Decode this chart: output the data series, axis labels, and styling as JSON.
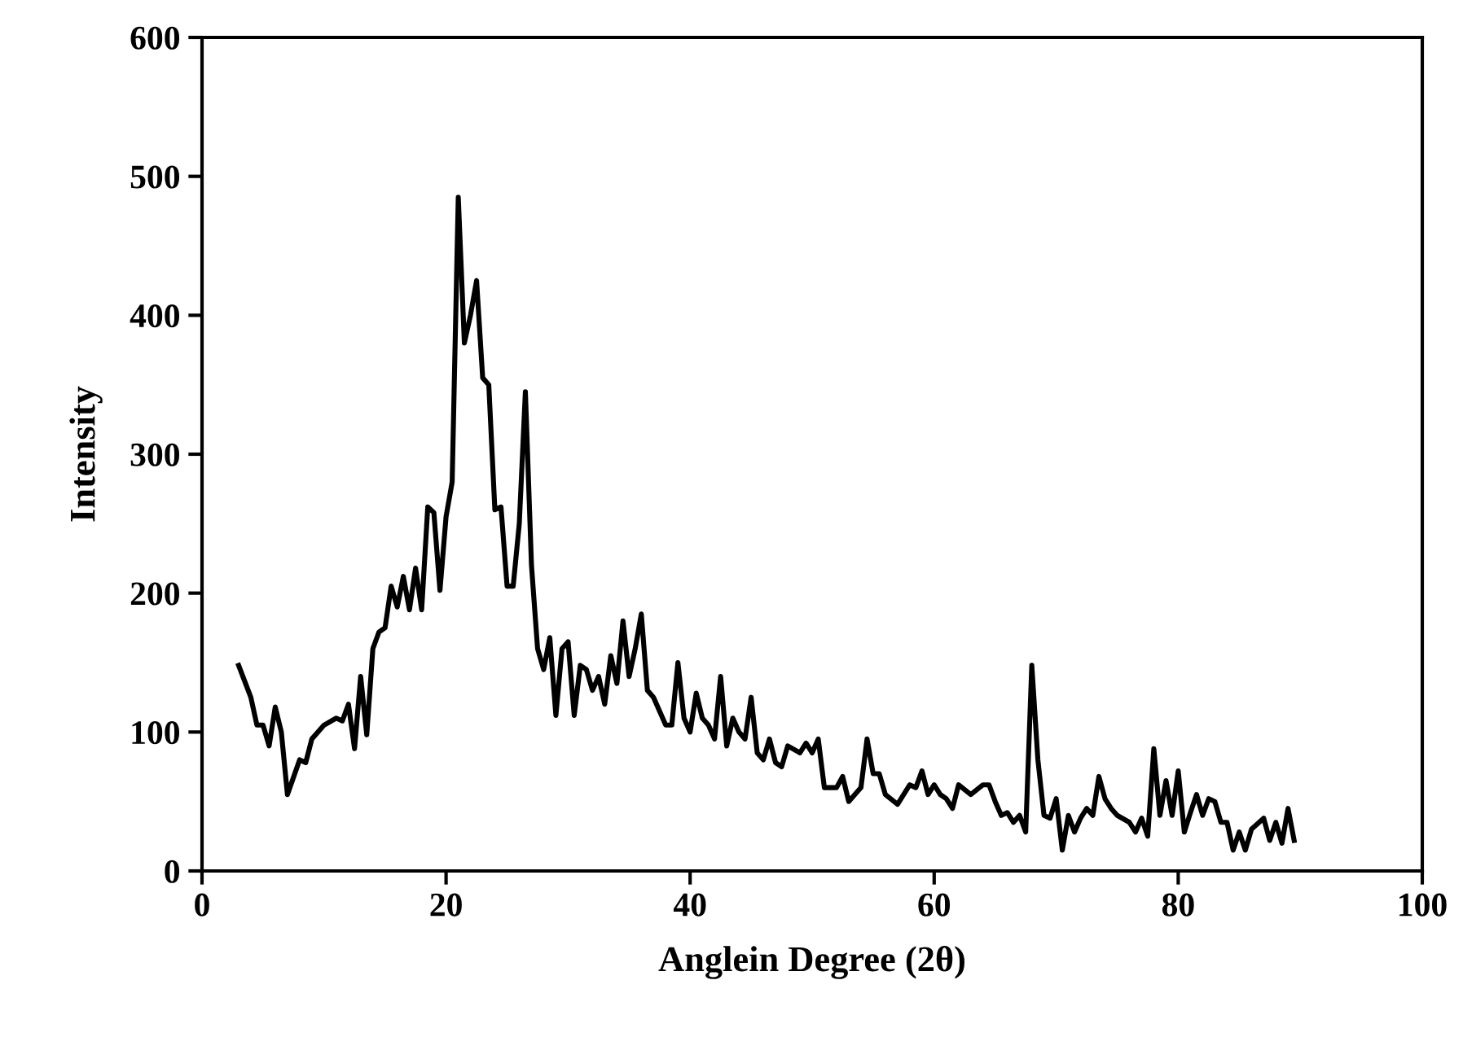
{
  "chart_data": {
    "type": "line",
    "xlabel": "Anglein Degree (2θ)",
    "ylabel": "Intensity",
    "xlim": [
      0,
      100
    ],
    "ylim": [
      0,
      600
    ],
    "xticks": [
      0,
      20,
      40,
      60,
      80,
      100
    ],
    "yticks": [
      0,
      100,
      200,
      300,
      400,
      500,
      600
    ],
    "grid": false,
    "legend": false,
    "marker": "none",
    "line_style": "solid",
    "series": [
      {
        "color": "#000000",
        "x": [
          3,
          4,
          4.5,
          5,
          5.5,
          6,
          6.5,
          7,
          8,
          8.5,
          9,
          10,
          11,
          11.5,
          12,
          12.5,
          13,
          13.5,
          14,
          14.5,
          15,
          15.5,
          16,
          16.5,
          17,
          17.5,
          18,
          18.5,
          19,
          19.5,
          20,
          20.5,
          21,
          21.5,
          22,
          22.5,
          23,
          23.5,
          24,
          24.5,
          25,
          25.5,
          26,
          26.5,
          27,
          27.5,
          28,
          28.5,
          29,
          29.5,
          30,
          30.5,
          31,
          31.5,
          32,
          32.5,
          33,
          33.5,
          34,
          34.5,
          35,
          35.5,
          36,
          36.5,
          37,
          38,
          38.5,
          39,
          39.5,
          40,
          40.5,
          41,
          41.5,
          42,
          42.5,
          43,
          43.5,
          44,
          44.5,
          45,
          45.5,
          46,
          46.5,
          47,
          47.5,
          48,
          49,
          49.5,
          50,
          50.5,
          51,
          52,
          52.5,
          53,
          54,
          54.5,
          55,
          55.5,
          56,
          57,
          58,
          58.5,
          59,
          59.5,
          60,
          60.5,
          61,
          61.5,
          62,
          63,
          64,
          64.5,
          65,
          65.5,
          66,
          66.5,
          67,
          67.5,
          68,
          68.5,
          69,
          69.5,
          70,
          70.5,
          71,
          71.5,
          72,
          72.5,
          73,
          73.5,
          74,
          74.5,
          75,
          76,
          76.5,
          77,
          77.5,
          78,
          78.5,
          79,
          79.5,
          80,
          80.5,
          81,
          81.5,
          82,
          82.5,
          83,
          83.5,
          84,
          84.5,
          85,
          85.5,
          86,
          87,
          87.5,
          88,
          88.5,
          89,
          89.5
        ],
        "values": [
          148,
          125,
          105,
          105,
          90,
          118,
          100,
          55,
          80,
          78,
          95,
          105,
          110,
          108,
          120,
          88,
          140,
          98,
          160,
          172,
          175,
          205,
          190,
          212,
          188,
          218,
          188,
          262,
          258,
          202,
          255,
          280,
          485,
          380,
          400,
          425,
          355,
          350,
          260,
          262,
          205,
          205,
          250,
          345,
          220,
          160,
          145,
          168,
          112,
          160,
          165,
          112,
          148,
          145,
          130,
          140,
          120,
          155,
          135,
          180,
          140,
          160,
          185,
          130,
          125,
          105,
          105,
          150,
          110,
          100,
          128,
          110,
          105,
          95,
          140,
          90,
          110,
          100,
          95,
          125,
          85,
          80,
          95,
          78,
          75,
          90,
          85,
          92,
          85,
          95,
          60,
          60,
          68,
          50,
          60,
          95,
          70,
          70,
          55,
          48,
          62,
          60,
          72,
          55,
          62,
          55,
          52,
          45,
          62,
          55,
          62,
          62,
          50,
          40,
          42,
          35,
          40,
          28,
          148,
          80,
          40,
          38,
          52,
          15,
          40,
          28,
          38,
          45,
          40,
          68,
          52,
          45,
          40,
          35,
          28,
          38,
          25,
          88,
          40,
          65,
          40,
          72,
          28,
          42,
          55,
          40,
          52,
          50,
          35,
          35,
          15,
          28,
          15,
          30,
          38,
          22,
          35,
          20,
          45,
          22
        ]
      }
    ]
  }
}
